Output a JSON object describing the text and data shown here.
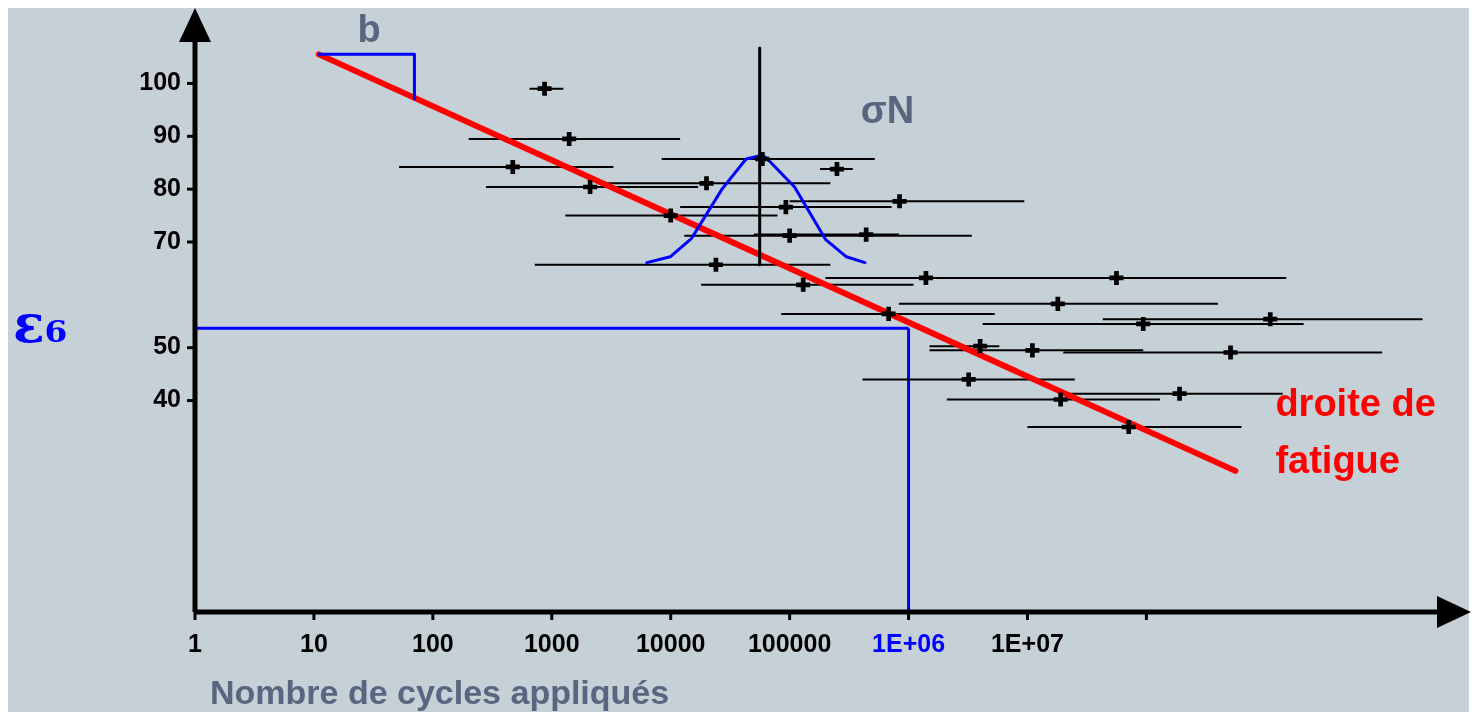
{
  "chart_data": {
    "type": "scatter",
    "xlabel": "Nombre de cycles appliqués",
    "log": "x",
    "xlim": [
      1,
      30000000000
    ],
    "xticks": [
      1,
      10,
      100,
      1000,
      10000,
      100000,
      {
        "value": 1000000,
        "label": "1E+06"
      },
      {
        "value": 10000000,
        "label": "1E+07"
      },
      {
        "value": 100000000,
        "label": null
      }
    ],
    "ylim": [
      0,
      112
    ],
    "yticks": [
      40,
      50,
      70,
      80,
      90,
      100
    ],
    "annotations": [
      {
        "text": "b",
        "x": 27,
        "y": 105.5
      },
      {
        "text": "σN",
        "x": 59000,
        "y": 86.4
      }
    ],
    "ref_lines": [
      {
        "axis": "y",
        "value": 53.7,
        "label": "ε₆",
        "color": "#0000ff"
      },
      {
        "axis": "x",
        "value": 1000000,
        "label": null,
        "color": "#0000ff"
      }
    ],
    "series": [
      {
        "color": "#000000",
        "marker": "cross",
        "x": [
          870,
          1400,
          470,
          2100,
          10000,
          20000,
          24000,
          59000,
          250000,
          93000,
          840000,
          100000,
          440000,
          130000,
          1400000,
          56000000,
          18000000,
          680000,
          94000000,
          1100000000,
          4000000,
          11000000,
          510000000,
          3200000,
          190000000,
          19000000,
          71000000
        ],
        "values": [
          99,
          89.5,
          84.2,
          80.4,
          75,
          81.1,
          65.7,
          85.7,
          83.8,
          76.6,
          77.7,
          71.2,
          71.4,
          61.9,
          63.2,
          63.2,
          58.3,
          56.4,
          54.5,
          55.4,
          50.3,
          49.5,
          49.1,
          44,
          41.3,
          40.2,
          35
        ],
        "xerrors": [
          [
            650,
            1250
          ],
          [
            200,
            12000
          ],
          [
            52,
            3300
          ],
          [
            280,
            17000
          ],
          [
            1300,
            79000
          ],
          [
            2700,
            220000
          ],
          [
            720,
            220000
          ],
          [
            8400,
            520000
          ],
          [
            180000,
            340000
          ],
          [
            12000,
            720000
          ],
          [
            100000,
            9400000
          ],
          [
            13000,
            3400000
          ],
          [
            50000,
            830000
          ],
          [
            18000,
            1100000
          ],
          [
            200000,
            11000000
          ],
          [
            3100000,
            1500000000
          ],
          [
            830000,
            400000000
          ],
          [
            85000,
            5300000
          ],
          [
            4200000,
            2100000000
          ],
          [
            43000000,
            21000000000
          ],
          [
            1500000,
            5800000
          ],
          [
            1500000,
            94000000
          ],
          [
            20000000,
            9600000000
          ],
          [
            410000,
            25000000
          ],
          [
            22000000,
            1400000000
          ],
          [
            2100000,
            130000000
          ],
          [
            10000000,
            630000000
          ]
        ]
      },
      {
        "type": "line",
        "name": "droite de fatigue",
        "color": "#ff0000",
        "x": [
          11,
          560000000
        ],
        "values": [
          105.5,
          26.7
        ]
      },
      {
        "type": "line",
        "color": "#0000ff",
        "x": [
          6300,
          9900,
          15000,
          27000,
          43000,
          59000,
          65000,
          110000,
          200000,
          300000,
          430000
        ],
        "values": [
          66.1,
          67.2,
          70.7,
          80,
          85.7,
          86.4,
          85.7,
          80.4,
          70.5,
          67.2,
          66.1
        ]
      },
      {
        "type": "line",
        "color": "#000000",
        "x": [
          56000,
          56000
        ],
        "values": [
          106.7,
          65.7
        ]
      },
      {
        "type": "line",
        "color": "#0000ff",
        "x": [
          11,
          70,
          70
        ],
        "values": [
          105.5,
          105.5,
          97.1
        ]
      }
    ]
  }
}
